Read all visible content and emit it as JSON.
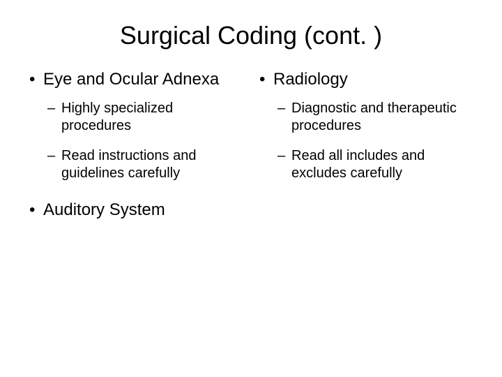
{
  "slide": {
    "title": "Surgical Coding (cont. )",
    "background_color": "#ffffff",
    "text_color": "#000000",
    "title_fontsize": 36,
    "body_fontsize": 24,
    "sub_fontsize": 20,
    "font_family": "Arial",
    "left": {
      "items": [
        {
          "text": "Eye and Ocular Adnexa",
          "sub": [
            "Highly specialized procedures",
            "Read instructions and guidelines carefully"
          ]
        },
        {
          "text": "Auditory System",
          "sub": []
        }
      ]
    },
    "right": {
      "items": [
        {
          "text": "Radiology",
          "sub": [
            "Diagnostic and therapeutic procedures",
            "Read all includes and excludes carefully"
          ]
        }
      ]
    }
  }
}
